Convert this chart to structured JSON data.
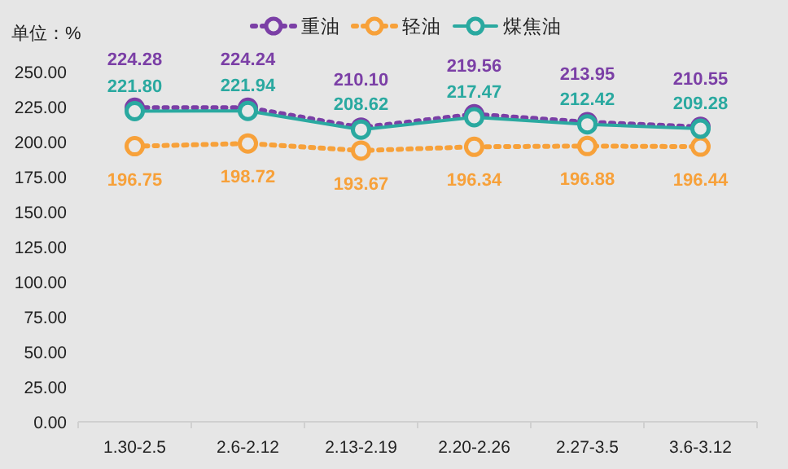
{
  "chart_data": {
    "type": "line",
    "ylabel": "单位：%",
    "categories": [
      "1.30-2.5",
      "2.6-2.12",
      "2.13-2.19",
      "2.20-2.26",
      "2.27-3.5",
      "3.6-3.12"
    ],
    "series": [
      {
        "name": "重油",
        "color": "#7b3fa6",
        "line_style": "dotted",
        "values": [
          224.28,
          224.24,
          210.1,
          219.56,
          213.95,
          210.55
        ],
        "value_labels": [
          "224.28",
          "224.24",
          "210.10",
          "219.56",
          "213.95",
          "210.55"
        ]
      },
      {
        "name": "轻油",
        "color": "#f7a13a",
        "line_style": "dotted",
        "values": [
          196.75,
          198.72,
          193.67,
          196.34,
          196.88,
          196.44
        ]
      },
      {
        "name": "煤焦油",
        "color": "#2aa9a0",
        "line_style": "solid",
        "values": [
          221.8,
          221.94,
          208.62,
          217.47,
          212.42,
          209.28
        ],
        "value_labels": [
          "221.80",
          "221.94",
          "208.62",
          "217.47",
          "212.42",
          "209.28"
        ]
      }
    ],
    "ylim": [
      0,
      250
    ],
    "yticks": [
      {
        "value": 0,
        "label": "0.00"
      },
      {
        "value": 25,
        "label": "25.00"
      },
      {
        "value": 50,
        "label": "50.00"
      },
      {
        "value": 75,
        "label": "75.00"
      },
      {
        "value": 100,
        "label": "100.00"
      },
      {
        "value": 125,
        "label": "125.00"
      },
      {
        "value": 150,
        "label": "150.00"
      },
      {
        "value": 175,
        "label": "175.00"
      },
      {
        "value": 200,
        "label": "200.00"
      },
      {
        "value": 225,
        "label": "225.00"
      },
      {
        "value": 250,
        "label": "250.00"
      }
    ],
    "grid": false,
    "legend": "top",
    "marker": "circle",
    "data_labels": true
  }
}
